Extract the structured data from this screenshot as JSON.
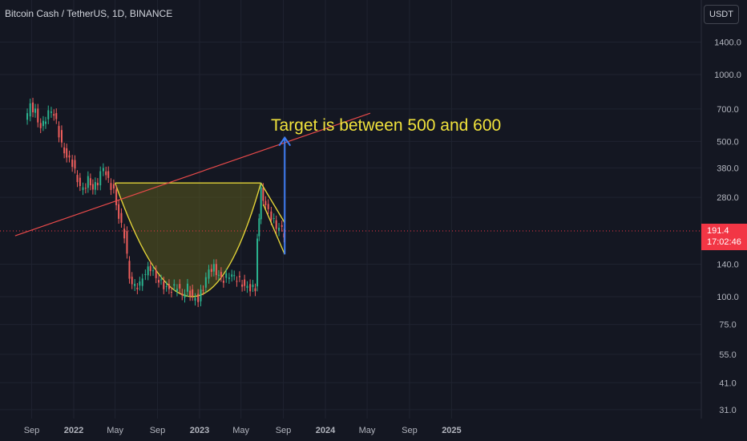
{
  "header": {
    "symbol_title": "Bitcoin Cash / TetherUS, 1D, BINANCE"
  },
  "price_scale": {
    "currency": "USDT"
  },
  "last_price": {
    "value": "191.4",
    "countdown": "17:02:46"
  },
  "annotation": {
    "text": "Target is between 500 and 600"
  },
  "colors": {
    "background": "#141722",
    "grid": "#1f2330",
    "axis_text": "#b2b5be",
    "candle_up": "#2bb38f",
    "candle_down": "#ee5e5c",
    "trendline": "#e84a4a",
    "cup": "#e3d438",
    "cup_fill": "#5a5a1e",
    "arrow": "#3f7cf2",
    "annotation_text": "#f0e23c",
    "price_badge": "#f23645"
  },
  "chart_data": {
    "type": "candlestick",
    "log_scale": true,
    "y_ticks": [
      "1400.0",
      "1000.0",
      "700.0",
      "500.0",
      "380.0",
      "280.0",
      "140.0",
      "100.0",
      "75.0",
      "55.0",
      "41.0",
      "31.0"
    ],
    "x_ticks": [
      "Sep",
      "2022",
      "May",
      "Sep",
      "2023",
      "May",
      "Sep",
      "2024",
      "May",
      "Sep",
      "2025"
    ],
    "ylim": [
      31,
      1400
    ],
    "last_price": 191.4,
    "series": [
      {
        "name": "",
        "points": [
          [
            "2021-08-15",
            610
          ],
          [
            "2021-09-01",
            720
          ],
          [
            "2021-09-15",
            680
          ],
          [
            "2021-10-01",
            580
          ],
          [
            "2021-10-15",
            640
          ],
          [
            "2021-11-01",
            690
          ],
          [
            "2021-11-15",
            610
          ],
          [
            "2021-12-01",
            480
          ],
          [
            "2021-12-15",
            430
          ],
          [
            "2022-01-01",
            400
          ],
          [
            "2022-01-15",
            330
          ],
          [
            "2022-02-01",
            300
          ],
          [
            "2022-02-15",
            340
          ],
          [
            "2022-03-01",
            310
          ],
          [
            "2022-03-15",
            330
          ],
          [
            "2022-04-01",
            380
          ],
          [
            "2022-04-15",
            330
          ],
          [
            "2022-05-01",
            300
          ],
          [
            "2022-05-15",
            230
          ],
          [
            "2022-06-01",
            190
          ],
          [
            "2022-06-15",
            120
          ],
          [
            "2022-07-01",
            110
          ],
          [
            "2022-07-15",
            115
          ],
          [
            "2022-08-01",
            130
          ],
          [
            "2022-08-15",
            135
          ],
          [
            "2022-09-01",
            120
          ],
          [
            "2022-09-15",
            115
          ],
          [
            "2022-10-01",
            110
          ],
          [
            "2022-10-15",
            108
          ],
          [
            "2022-11-01",
            112
          ],
          [
            "2022-11-15",
            100
          ],
          [
            "2022-12-01",
            110
          ],
          [
            "2022-12-15",
            100
          ],
          [
            "2023-01-01",
            98
          ],
          [
            "2023-01-15",
            110
          ],
          [
            "2023-02-01",
            130
          ],
          [
            "2023-02-15",
            135
          ],
          [
            "2023-03-01",
            125
          ],
          [
            "2023-03-15",
            120
          ],
          [
            "2023-04-01",
            125
          ],
          [
            "2023-04-15",
            122
          ],
          [
            "2023-05-01",
            118
          ],
          [
            "2023-05-15",
            112
          ],
          [
            "2023-06-01",
            110
          ],
          [
            "2023-06-15",
            108
          ],
          [
            "2023-06-20",
            180
          ],
          [
            "2023-07-01",
            300
          ],
          [
            "2023-07-15",
            260
          ],
          [
            "2023-08-01",
            230
          ],
          [
            "2023-08-15",
            205
          ],
          [
            "2023-09-01",
            200
          ],
          [
            "2023-09-05",
            191.4
          ]
        ]
      }
    ],
    "trendline": [
      [
        "2021-07-15",
        188
      ],
      [
        "2024-05-10",
        670
      ]
    ],
    "cup_rim": [
      [
        "2022-05-01",
        325
      ],
      [
        "2023-06-28",
        325
      ]
    ],
    "cup_bottom": [
      "2022-12-10",
      100
    ],
    "channel": [
      [
        [
          "2023-06-28",
          325
        ],
        [
          "2023-09-05",
          215
        ]
      ],
      [
        [
          "2023-07-05",
          260
        ],
        [
          "2023-09-05",
          155
        ]
      ]
    ],
    "arrow": [
      [
        "2023-09-05",
        155
      ],
      [
        "2023-09-05",
        520
      ]
    ]
  }
}
